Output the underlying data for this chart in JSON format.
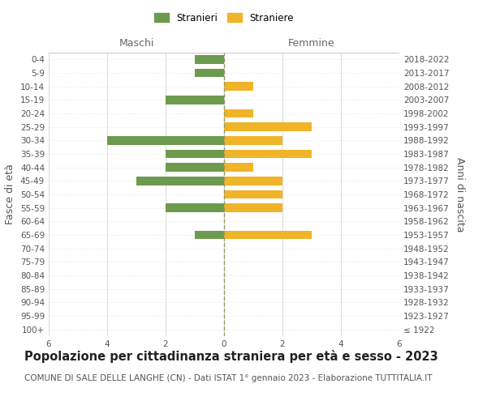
{
  "age_groups": [
    "100+",
    "95-99",
    "90-94",
    "85-89",
    "80-84",
    "75-79",
    "70-74",
    "65-69",
    "60-64",
    "55-59",
    "50-54",
    "45-49",
    "40-44",
    "35-39",
    "30-34",
    "25-29",
    "20-24",
    "15-19",
    "10-14",
    "5-9",
    "0-4"
  ],
  "birth_years": [
    "≤ 1922",
    "1923-1927",
    "1928-1932",
    "1933-1937",
    "1938-1942",
    "1943-1947",
    "1948-1952",
    "1953-1957",
    "1958-1962",
    "1963-1967",
    "1968-1972",
    "1973-1977",
    "1978-1982",
    "1983-1987",
    "1988-1992",
    "1993-1997",
    "1998-2002",
    "2003-2007",
    "2008-2012",
    "2013-2017",
    "2018-2022"
  ],
  "males": [
    0,
    0,
    0,
    0,
    0,
    0,
    0,
    1,
    0,
    2,
    0,
    3,
    2,
    2,
    4,
    0,
    0,
    2,
    0,
    1,
    1
  ],
  "females": [
    0,
    0,
    0,
    0,
    0,
    0,
    0,
    3,
    0,
    2,
    2,
    2,
    1,
    3,
    2,
    3,
    1,
    0,
    1,
    0,
    0
  ],
  "male_color": "#6d9b4e",
  "female_color": "#f0b429",
  "title": "Popolazione per cittadinanza straniera per età e sesso - 2023",
  "subtitle": "COMUNE DI SALE DELLE LANGHE (CN) - Dati ISTAT 1° gennaio 2023 - Elaborazione TUTTITALIA.IT",
  "legend_male": "Stranieri",
  "legend_female": "Straniere",
  "header_left": "Maschi",
  "header_right": "Femmine",
  "ylabel_left": "Fasce di età",
  "ylabel_right": "Anni di nascita",
  "xlim": 6,
  "background_color": "#ffffff",
  "grid_color": "#cccccc",
  "grid_color_h": "#dddddd",
  "dashed_line_color": "#999966",
  "title_fontsize": 10.5,
  "subtitle_fontsize": 7.5,
  "tick_fontsize": 7.5,
  "label_fontsize": 9,
  "header_fontsize": 9
}
